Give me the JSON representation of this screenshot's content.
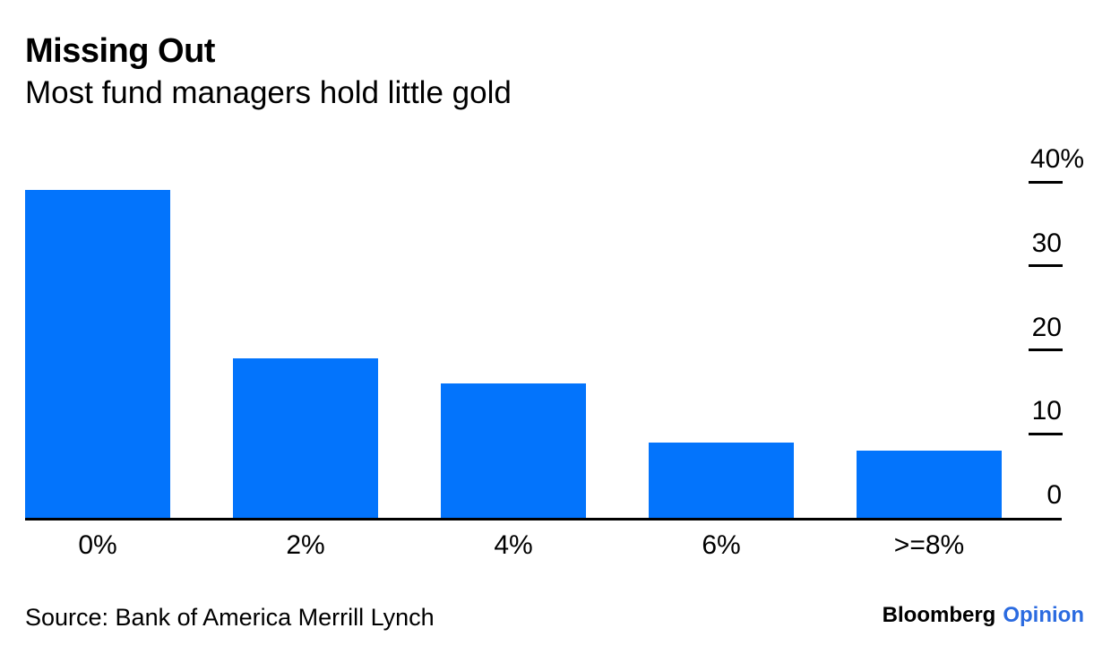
{
  "chart_data": {
    "type": "bar",
    "title": "Missing Out",
    "subtitle": "Most fund managers hold little gold",
    "categories": [
      "0%",
      "2%",
      "4%",
      "6%",
      ">=8%"
    ],
    "values": [
      39,
      19,
      16,
      9,
      8
    ],
    "unit": "%",
    "xlabel": "",
    "ylabel": "",
    "ylim": [
      0,
      40
    ],
    "yticks": [
      {
        "value": 0,
        "label": "0"
      },
      {
        "value": 10,
        "label": "10"
      },
      {
        "value": 20,
        "label": "20"
      },
      {
        "value": 30,
        "label": "30"
      },
      {
        "value": 40,
        "label": "40%"
      }
    ],
    "y_axis_side": "right",
    "grid": false,
    "legend": false,
    "bar_color": "#0374fc",
    "axis_color": "#000000"
  },
  "footer": {
    "source": "Source: Bank of America Merrill Lynch",
    "brand": {
      "name": "Bloomberg",
      "edition": "Opinion",
      "edition_color": "#2b6be0"
    }
  }
}
